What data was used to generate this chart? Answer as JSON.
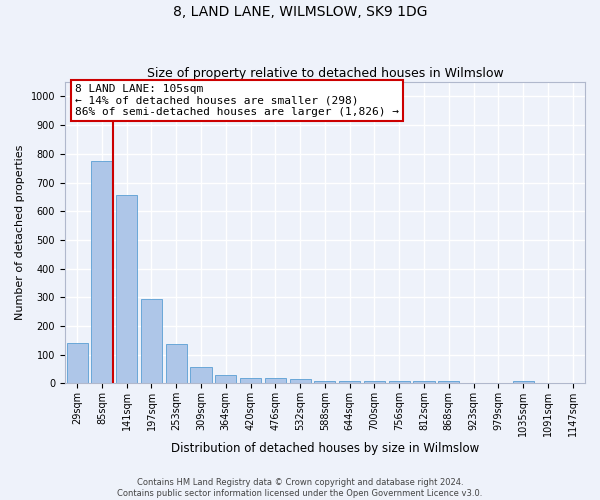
{
  "title": "8, LAND LANE, WILMSLOW, SK9 1DG",
  "subtitle": "Size of property relative to detached houses in Wilmslow",
  "xlabel": "Distribution of detached houses by size in Wilmslow",
  "ylabel": "Number of detached properties",
  "categories": [
    "29sqm",
    "85sqm",
    "141sqm",
    "197sqm",
    "253sqm",
    "309sqm",
    "364sqm",
    "420sqm",
    "476sqm",
    "532sqm",
    "588sqm",
    "644sqm",
    "700sqm",
    "756sqm",
    "812sqm",
    "868sqm",
    "923sqm",
    "979sqm",
    "1035sqm",
    "1091sqm",
    "1147sqm"
  ],
  "values": [
    140,
    775,
    655,
    295,
    138,
    57,
    28,
    18,
    18,
    14,
    7,
    7,
    7,
    8,
    8,
    7,
    2,
    2,
    10,
    2,
    2
  ],
  "bar_color": "#aec6e8",
  "bar_edge_color": "#5a9fd4",
  "vline_color": "#cc0000",
  "vline_x": 1.43,
  "annotation_text": "8 LAND LANE: 105sqm\n← 14% of detached houses are smaller (298)\n86% of semi-detached houses are larger (1,826) →",
  "annotation_box_color": "#ffffff",
  "annotation_box_edge": "#cc0000",
  "ylim": [
    0,
    1050
  ],
  "yticks": [
    0,
    100,
    200,
    300,
    400,
    500,
    600,
    700,
    800,
    900,
    1000
  ],
  "footer_text": "Contains HM Land Registry data © Crown copyright and database right 2024.\nContains public sector information licensed under the Open Government Licence v3.0.",
  "bg_color": "#eef2fa",
  "grid_color": "#ffffff",
  "title_fontsize": 10,
  "subtitle_fontsize": 9,
  "tick_fontsize": 7,
  "ylabel_fontsize": 8,
  "xlabel_fontsize": 8.5,
  "annotation_fontsize": 8,
  "footer_fontsize": 6
}
